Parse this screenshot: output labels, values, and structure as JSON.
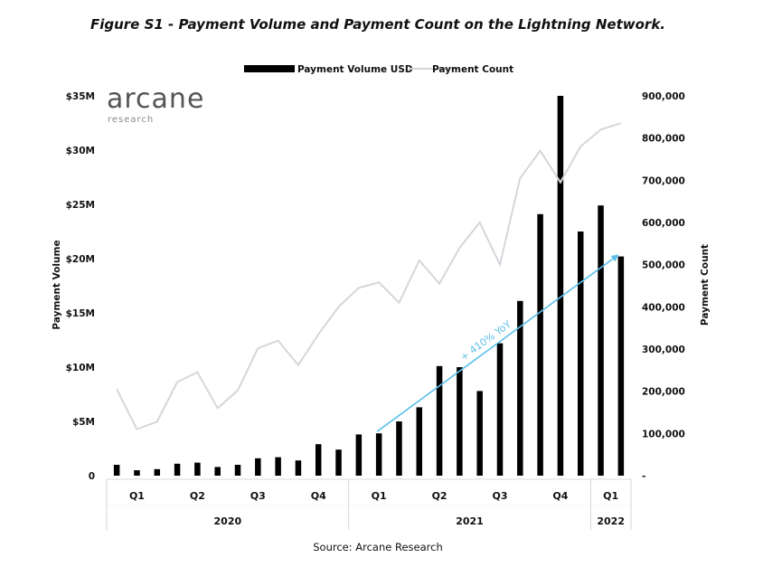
{
  "title": "Figure S1 - Payment Volume and Payment Count on the Lightning Network.",
  "source": "Source: Arcane Research",
  "logo": {
    "name": "arcane",
    "sub": "research"
  },
  "colors": {
    "bars": "#000000",
    "line": "#d4d7da",
    "arrow": "#5bc0eb",
    "grid": "#cccccc"
  },
  "chart_data": {
    "type": "bar",
    "series": [
      {
        "name": "Payment Volume USD",
        "type": "bar",
        "axis": "left",
        "unit": "USD millions",
        "values": [
          1.0,
          0.5,
          0.6,
          1.1,
          1.2,
          0.8,
          1.0,
          1.6,
          1.7,
          1.4,
          2.9,
          2.4,
          3.8,
          3.9,
          5.0,
          6.3,
          10.1,
          10.0,
          7.8,
          12.2,
          16.1,
          24.1,
          35.0,
          22.5,
          24.9,
          20.2
        ]
      },
      {
        "name": "Payment Count",
        "type": "line",
        "axis": "right",
        "values": [
          205000,
          110000,
          128000,
          222000,
          245000,
          160000,
          202000,
          302000,
          320000,
          262000,
          335000,
          400000,
          445000,
          458000,
          410000,
          510000,
          455000,
          540000,
          600000,
          500000,
          705000,
          770000,
          695000,
          780000,
          820000,
          835000
        ]
      }
    ],
    "quarters": [
      {
        "label": "Q1",
        "from": 0,
        "to": 2
      },
      {
        "label": "Q2",
        "from": 3,
        "to": 5
      },
      {
        "label": "Q3",
        "from": 6,
        "to": 8
      },
      {
        "label": "Q4",
        "from": 9,
        "to": 11
      },
      {
        "label": "Q1",
        "from": 12,
        "to": 14
      },
      {
        "label": "Q2",
        "from": 15,
        "to": 17
      },
      {
        "label": "Q3",
        "from": 18,
        "to": 20
      },
      {
        "label": "Q4",
        "from": 21,
        "to": 23
      },
      {
        "label": "Q1",
        "from": 24,
        "to": 25
      }
    ],
    "years": [
      {
        "label": "2020",
        "from": 0,
        "to": 11
      },
      {
        "label": "2021",
        "from": 12,
        "to": 23
      },
      {
        "label": "2022",
        "from": 24,
        "to": 25
      }
    ],
    "y_left": {
      "label": "Payment Volume",
      "range": [
        0,
        35
      ],
      "ticks": [
        0,
        5,
        10,
        15,
        20,
        25,
        30,
        35
      ],
      "tick_labels": [
        "0",
        "$5M",
        "$10M",
        "$15M",
        "$20M",
        "$25M",
        "$30M",
        "$35M"
      ]
    },
    "y_right": {
      "label": "Payment Count",
      "range": [
        0,
        900000
      ],
      "ticks": [
        0,
        100000,
        200000,
        300000,
        400000,
        500000,
        600000,
        700000,
        800000,
        900000
      ],
      "tick_labels": [
        "-",
        "100,000",
        "200,000",
        "300,000",
        "400,000",
        "500,000",
        "600,000",
        "700,000",
        "800,000",
        "900,000"
      ]
    },
    "annotation": {
      "text": "+ 410% YoY",
      "from_index": 13,
      "from_value": 3.9,
      "to_index": 25,
      "to_value": 20.2
    },
    "legend": "top-center",
    "grid": false
  }
}
